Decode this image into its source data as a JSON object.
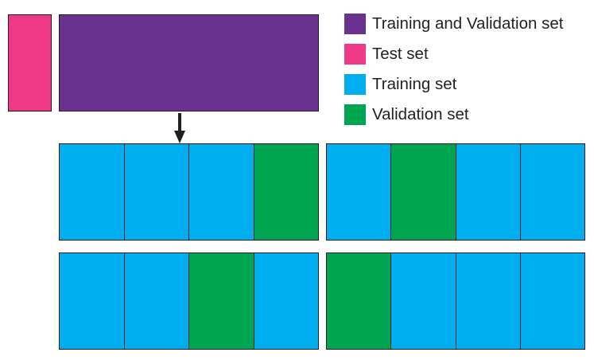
{
  "colors": {
    "training_and_validation": "#69328f",
    "test": "#ee3a86",
    "training": "#00adef",
    "validation": "#00a551",
    "stroke": "#231f20"
  },
  "legend": {
    "items": [
      {
        "key": "training_and_validation",
        "label": "Training and Validation set"
      },
      {
        "key": "test",
        "label": "Test set"
      },
      {
        "key": "training",
        "label": "Training set"
      },
      {
        "key": "validation",
        "label": "Validation set"
      }
    ]
  },
  "folds": [
    [
      "training",
      "training",
      "training",
      "validation"
    ],
    [
      "training",
      "validation",
      "training",
      "training"
    ],
    [
      "training",
      "training",
      "validation",
      "training"
    ],
    [
      "validation",
      "training",
      "training",
      "training"
    ]
  ]
}
